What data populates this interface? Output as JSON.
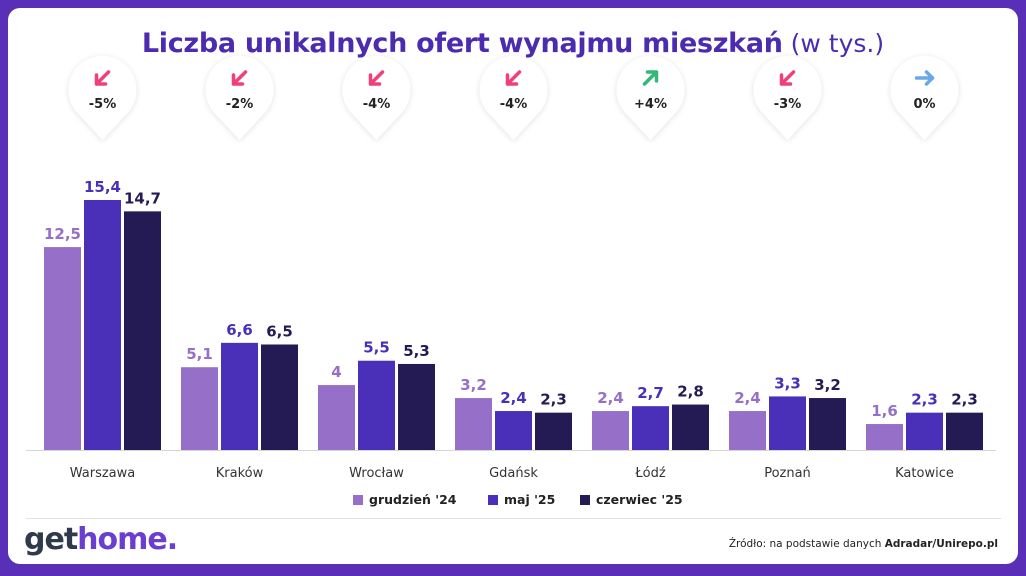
{
  "logo": {
    "part1": "get",
    "part2": "home."
  },
  "source": {
    "prefix": "Źródło: na podstawie danych ",
    "bold": "Adradar/Unirepo.pl"
  },
  "colors": {
    "grudzien": "#9670c8",
    "maj": "#4a2fb8",
    "czerwiec": "#241b54",
    "down": "#ef3f7a",
    "up": "#33b877",
    "flat": "#6aa8e6"
  },
  "chart_data": {
    "type": "bar",
    "title": "Liczba unikalnych ofert wynajmu mieszkań",
    "unit": "(w tys.)",
    "categories": [
      "Warszawa",
      "Kraków",
      "Wrocław",
      "Gdańsk",
      "Łódź",
      "Poznań",
      "Katowice"
    ],
    "series": [
      {
        "name": "grudzień '24",
        "values": [
          12.5,
          5.1,
          4,
          3.2,
          2.4,
          2.4,
          1.6
        ],
        "labels": [
          "12,5",
          "5,1",
          "4",
          "3,2",
          "2,4",
          "2,4",
          "1,6"
        ]
      },
      {
        "name": "maj '25",
        "values": [
          15.4,
          6.6,
          5.5,
          2.4,
          2.7,
          3.3,
          2.3
        ],
        "labels": [
          "15,4",
          "6,6",
          "5,5",
          "2,4",
          "2,7",
          "3,3",
          "2,3"
        ]
      },
      {
        "name": "czerwiec '25",
        "values": [
          14.7,
          6.5,
          5.3,
          2.3,
          2.8,
          3.2,
          2.3
        ],
        "labels": [
          "14,7",
          "6,5",
          "5,3",
          "2,3",
          "2,8",
          "3,2",
          "2,3"
        ]
      }
    ],
    "changes": [
      {
        "label": "-5%",
        "direction": "down"
      },
      {
        "label": "-2%",
        "direction": "down"
      },
      {
        "label": "-4%",
        "direction": "down"
      },
      {
        "label": "-4%",
        "direction": "down"
      },
      {
        "label": "+4%",
        "direction": "up"
      },
      {
        "label": "-3%",
        "direction": "down"
      },
      {
        "label": "0%",
        "direction": "flat"
      }
    ],
    "ylim": [
      0,
      15.4
    ],
    "legend": "bottom-center",
    "grid": false
  }
}
